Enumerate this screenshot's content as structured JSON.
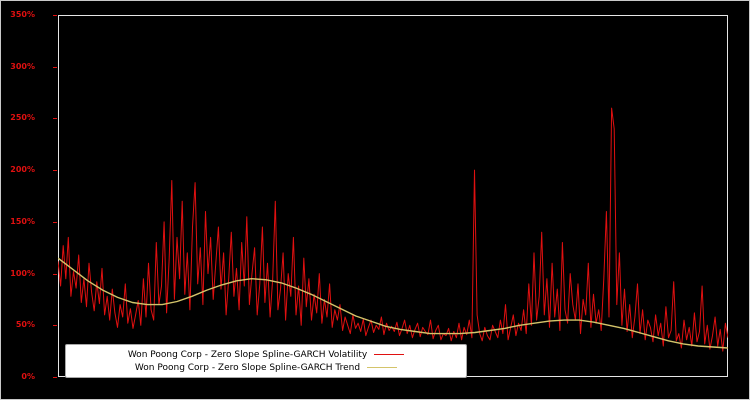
{
  "figure": {
    "background": "#000000",
    "border_color": "#c9c9c9"
  },
  "axes": {
    "ylim": [
      0,
      350
    ],
    "tick_values": [
      0,
      50,
      100,
      150,
      200,
      250,
      300,
      350
    ],
    "y_ticks": [
      "0%",
      "50%",
      "100%",
      "150%",
      "200%",
      "250%",
      "300%",
      "350%"
    ],
    "tick_color": "#e01010",
    "spine_color": "#e6e6e6"
  },
  "legend": {
    "background": "#ffffff",
    "entries": [
      {
        "label": "Won Poong Corp - Zero Slope Spline-GARCH Volatility",
        "color": "#e01010"
      },
      {
        "label": "Won Poong Corp - Zero Slope Spline-GARCH Trend",
        "color": "#d4c46a"
      }
    ]
  },
  "chart_data": {
    "type": "line",
    "title": "",
    "xlabel": "",
    "ylabel": "",
    "ylim": [
      0,
      350
    ],
    "y_tick_labels": [
      "0%",
      "50%",
      "100%",
      "150%",
      "200%",
      "250%",
      "300%",
      "350%"
    ],
    "x_range": [
      0,
      1
    ],
    "grid": false,
    "legend_position": "lower center",
    "series": [
      {
        "name": "Won Poong Corp - Zero Slope Spline-GARCH Volatility",
        "color": "#e01010",
        "stroke_width": 1,
        "values": [
          112,
          88,
          127,
          95,
          135,
          78,
          102,
          86,
          118,
          72,
          95,
          68,
          110,
          82,
          64,
          92,
          71,
          105,
          60,
          78,
          55,
          85,
          62,
          48,
          70,
          58,
          90,
          52,
          66,
          47,
          60,
          74,
          50,
          95,
          58,
          110,
          65,
          55,
          130,
          70,
          88,
          150,
          62,
          115,
          190,
          75,
          135,
          95,
          170,
          80,
          120,
          65,
          145,
          188,
          90,
          125,
          70,
          160,
          100,
          135,
          75,
          110,
          145,
          85,
          120,
          60,
          95,
          140,
          78,
          105,
          65,
          130,
          88,
          155,
          70,
          100,
          125,
          60,
          90,
          145,
          72,
          110,
          58,
          95,
          170,
          65,
          85,
          120,
          55,
          100,
          78,
          135,
          60,
          88,
          50,
          115,
          68,
          95,
          55,
          80,
          62,
          100,
          52,
          75,
          58,
          90,
          48,
          65,
          55,
          70,
          45,
          58,
          50,
          42,
          60,
          47,
          52,
          44,
          56,
          40,
          48,
          55,
          43,
          50,
          46,
          58,
          41,
          52,
          45,
          49,
          44,
          53,
          40,
          47,
          55,
          42,
          50,
          38,
          46,
          52,
          39,
          48,
          44,
          41,
          55,
          37,
          45,
          50,
          36,
          42,
          40,
          47,
          35,
          44,
          38,
          52,
          36,
          48,
          41,
          55,
          38,
          200,
          60,
          42,
          35,
          48,
          40,
          36,
          50,
          44,
          38,
          55,
          42,
          70,
          36,
          48,
          60,
          40,
          52,
          45,
          65,
          42,
          90,
          50,
          120,
          55,
          78,
          140,
          60,
          95,
          48,
          110,
          58,
          85,
          45,
          130,
          65,
          52,
          100,
          70,
          55,
          90,
          42,
          75,
          60,
          110,
          48,
          80,
          52,
          65,
          45,
          95,
          160,
          58,
          260,
          240,
          70,
          120,
          50,
          85,
          44,
          70,
          38,
          58,
          90,
          42,
          65,
          36,
          55,
          48,
          34,
          60,
          40,
          52,
          30,
          68,
          38,
          45,
          92,
          35,
          42,
          28,
          55,
          36,
          48,
          30,
          62,
          34,
          44,
          88,
          32,
          50,
          27,
          40,
          58,
          30,
          46,
          25,
          52,
          38
        ]
      },
      {
        "name": "Won Poong Corp - Zero Slope Spline-GARCH Trend",
        "color": "#d4c46a",
        "stroke_width": 1.4,
        "values": [
          115,
          104,
          93,
          84,
          77,
          72,
          70,
          70,
          73,
          78,
          84,
          89,
          93,
          95,
          94,
          91,
          86,
          80,
          73,
          66,
          59,
          54,
          49,
          46,
          44,
          42,
          42,
          42,
          43,
          45,
          47,
          50,
          52,
          54,
          55,
          55,
          53,
          50,
          47,
          43,
          39,
          35,
          32,
          30,
          29,
          28
        ]
      }
    ]
  }
}
